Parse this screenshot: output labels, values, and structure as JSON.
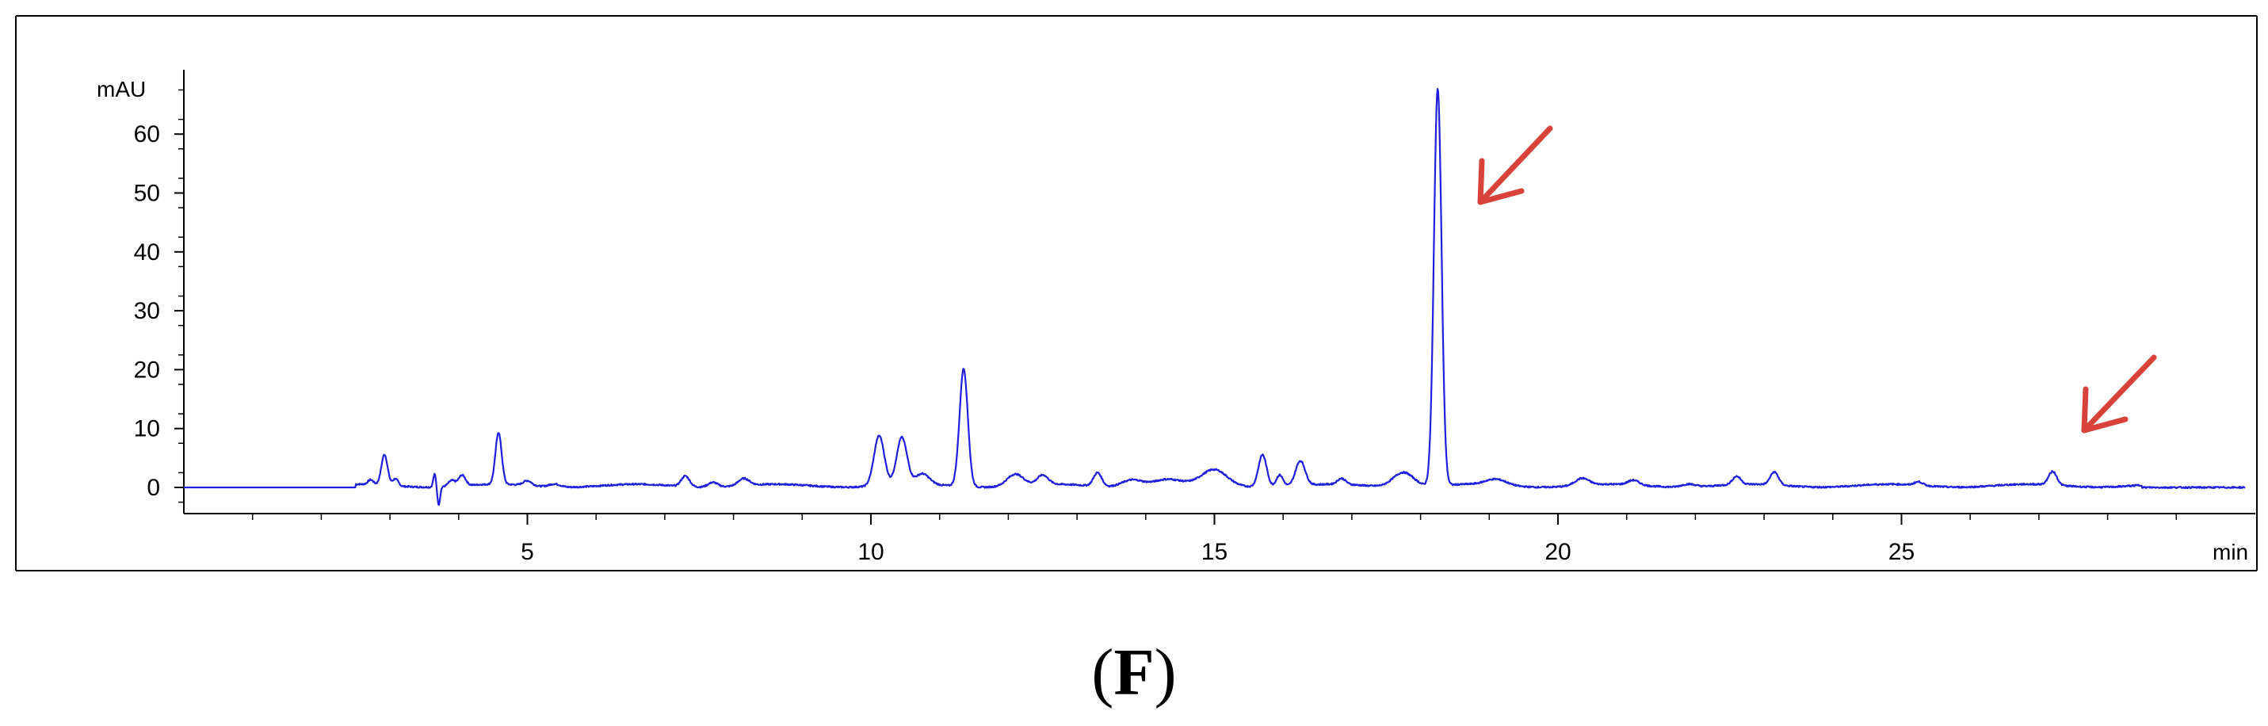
{
  "panel_label": {
    "open": "(",
    "letter": "F",
    "close": ")"
  },
  "colors": {
    "trace": "#1f1fdc",
    "arrow": "#d9413b",
    "axis": "#000000"
  },
  "chart_data": {
    "type": "line",
    "title": "",
    "ylabel": "mAU",
    "xlabel": "min",
    "xlim": [
      0,
      30
    ],
    "ylim": [
      -5,
      70
    ],
    "x_ticks": [
      5,
      10,
      15,
      20,
      25
    ],
    "y_ticks": [
      0,
      10,
      20,
      30,
      40,
      50,
      60
    ],
    "grid": false,
    "baseline": 0,
    "peaks": [
      {
        "x": 2.72,
        "y": 0.8,
        "w": 0.04
      },
      {
        "x": 2.92,
        "y": 5.2,
        "w": 0.045
      },
      {
        "x": 3.08,
        "y": 1.2,
        "w": 0.04
      },
      {
        "x": 3.65,
        "y": 2.2,
        "w": 0.02
      },
      {
        "x": 3.71,
        "y": -3.0,
        "w": 0.02
      },
      {
        "x": 3.9,
        "y": 1.0,
        "w": 0.05
      },
      {
        "x": 4.05,
        "y": 1.8,
        "w": 0.05
      },
      {
        "x": 4.58,
        "y": 8.8,
        "w": 0.045
      },
      {
        "x": 5.0,
        "y": 0.8,
        "w": 0.06
      },
      {
        "x": 5.4,
        "y": 0.5,
        "w": 0.08
      },
      {
        "x": 7.3,
        "y": 1.8,
        "w": 0.06
      },
      {
        "x": 7.7,
        "y": 0.8,
        "w": 0.07
      },
      {
        "x": 8.15,
        "y": 1.2,
        "w": 0.08
      },
      {
        "x": 10.12,
        "y": 8.5,
        "w": 0.075
      },
      {
        "x": 10.45,
        "y": 8.0,
        "w": 0.075
      },
      {
        "x": 10.75,
        "y": 1.8,
        "w": 0.1
      },
      {
        "x": 11.35,
        "y": 20.0,
        "w": 0.06
      },
      {
        "x": 12.1,
        "y": 2.0,
        "w": 0.12
      },
      {
        "x": 12.5,
        "y": 1.6,
        "w": 0.08
      },
      {
        "x": 13.3,
        "y": 2.3,
        "w": 0.06
      },
      {
        "x": 13.8,
        "y": 1.2,
        "w": 0.15
      },
      {
        "x": 14.3,
        "y": 1.0,
        "w": 0.2
      },
      {
        "x": 15.0,
        "y": 2.6,
        "w": 0.18
      },
      {
        "x": 15.7,
        "y": 5.5,
        "w": 0.06
      },
      {
        "x": 15.95,
        "y": 2.0,
        "w": 0.05
      },
      {
        "x": 16.25,
        "y": 4.2,
        "w": 0.07
      },
      {
        "x": 16.85,
        "y": 1.0,
        "w": 0.06
      },
      {
        "x": 17.75,
        "y": 2.5,
        "w": 0.15
      },
      {
        "x": 18.25,
        "y": 67.5,
        "w": 0.055
      },
      {
        "x": 19.1,
        "y": 1.0,
        "w": 0.15
      },
      {
        "x": 20.35,
        "y": 1.2,
        "w": 0.1
      },
      {
        "x": 21.1,
        "y": 0.8,
        "w": 0.08
      },
      {
        "x": 21.9,
        "y": 0.5,
        "w": 0.1
      },
      {
        "x": 22.6,
        "y": 1.4,
        "w": 0.06
      },
      {
        "x": 23.15,
        "y": 2.2,
        "w": 0.06
      },
      {
        "x": 25.25,
        "y": 0.6,
        "w": 0.06
      },
      {
        "x": 27.2,
        "y": 2.3,
        "w": 0.06
      }
    ],
    "arrows": [
      {
        "target_x": 18.25,
        "note": "main peak"
      },
      {
        "target_x": 27.2,
        "note": "late peak"
      }
    ]
  }
}
